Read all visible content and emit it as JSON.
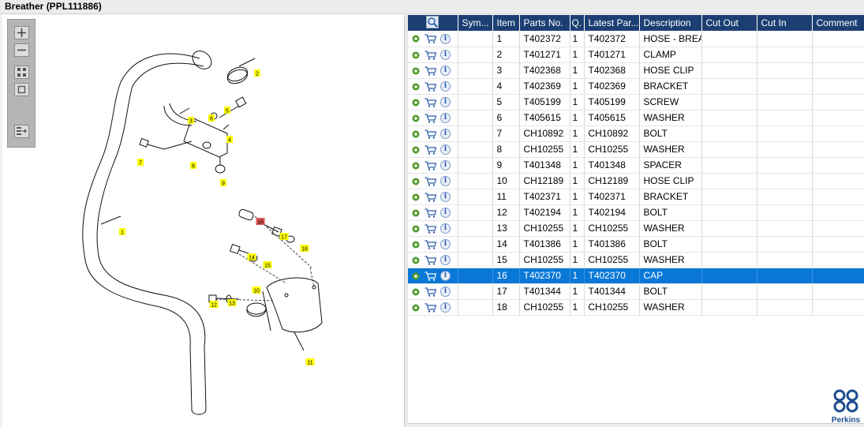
{
  "window": {
    "title": "Breather (PPL111886)"
  },
  "toolbar": {
    "buttons": [
      {
        "name": "zoom-in",
        "icon": "plus-icon"
      },
      {
        "name": "zoom-out",
        "icon": "minus-icon"
      },
      {
        "name": "fit",
        "icon": "fit-icon"
      },
      {
        "name": "actual-size",
        "icon": "square-icon"
      },
      {
        "name": "export",
        "icon": "list-arrow-icon"
      }
    ]
  },
  "diagram": {
    "callouts": [
      "1",
      "2",
      "3",
      "4",
      "5",
      "6",
      "7",
      "8",
      "9",
      "10",
      "11",
      "12",
      "13",
      "14",
      "15",
      "16",
      "17",
      "18"
    ],
    "highlighted_callout": "16",
    "callout_color": "#ffff00",
    "highlight_color": "#e05555"
  },
  "table": {
    "header_color": "#1c3f73",
    "selected_color": "#0a78d7",
    "columns": [
      "",
      "Sym...",
      "Item",
      "Parts No.",
      "Q.",
      "Latest Par...",
      "Description",
      "Cut Out",
      "Cut In",
      "Comment"
    ],
    "rows": [
      {
        "item": "1",
        "part_no": "T402372",
        "qty": "1",
        "latest": "T402372",
        "desc": "HOSE - BREATH"
      },
      {
        "item": "2",
        "part_no": "T401271",
        "qty": "1",
        "latest": "T401271",
        "desc": "CLAMP"
      },
      {
        "item": "3",
        "part_no": "T402368",
        "qty": "1",
        "latest": "T402368",
        "desc": "HOSE CLIP"
      },
      {
        "item": "4",
        "part_no": "T402369",
        "qty": "1",
        "latest": "T402369",
        "desc": "BRACKET"
      },
      {
        "item": "5",
        "part_no": "T405199",
        "qty": "1",
        "latest": "T405199",
        "desc": "SCREW"
      },
      {
        "item": "6",
        "part_no": "T405615",
        "qty": "1",
        "latest": "T405615",
        "desc": "WASHER"
      },
      {
        "item": "7",
        "part_no": "CH10892",
        "qty": "1",
        "latest": "CH10892",
        "desc": "BOLT"
      },
      {
        "item": "8",
        "part_no": "CH10255",
        "qty": "1",
        "latest": "CH10255",
        "desc": "WASHER"
      },
      {
        "item": "9",
        "part_no": "T401348",
        "qty": "1",
        "latest": "T401348",
        "desc": "SPACER"
      },
      {
        "item": "10",
        "part_no": "CH12189",
        "qty": "1",
        "latest": "CH12189",
        "desc": "HOSE CLIP"
      },
      {
        "item": "11",
        "part_no": "T402371",
        "qty": "1",
        "latest": "T402371",
        "desc": "BRACKET"
      },
      {
        "item": "12",
        "part_no": "T402194",
        "qty": "1",
        "latest": "T402194",
        "desc": "BOLT"
      },
      {
        "item": "13",
        "part_no": "CH10255",
        "qty": "1",
        "latest": "CH10255",
        "desc": "WASHER"
      },
      {
        "item": "14",
        "part_no": "T401386",
        "qty": "1",
        "latest": "T401386",
        "desc": "BOLT"
      },
      {
        "item": "15",
        "part_no": "CH10255",
        "qty": "1",
        "latest": "CH10255",
        "desc": "WASHER"
      },
      {
        "item": "16",
        "part_no": "T402370",
        "qty": "1",
        "latest": "T402370",
        "desc": "CAP",
        "selected": true
      },
      {
        "item": "17",
        "part_no": "T401344",
        "qty": "1",
        "latest": "T401344",
        "desc": "BOLT"
      },
      {
        "item": "18",
        "part_no": "CH10255",
        "qty": "1",
        "latest": "CH10255",
        "desc": "WASHER"
      }
    ]
  },
  "logo": {
    "text": "Perkins",
    "color": "#1d4c8f"
  }
}
